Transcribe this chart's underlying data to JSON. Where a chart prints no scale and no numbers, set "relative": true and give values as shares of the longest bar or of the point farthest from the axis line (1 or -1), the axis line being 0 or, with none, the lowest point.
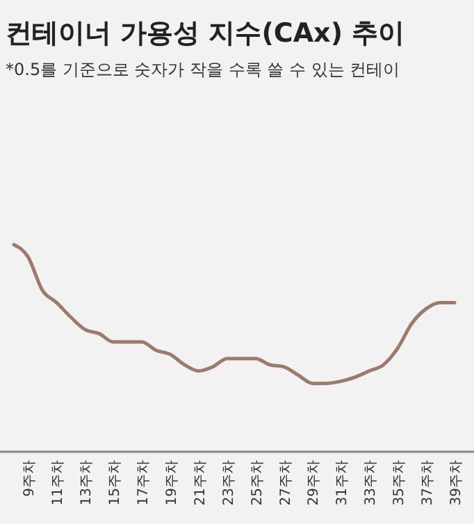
{
  "chart_data": {
    "type": "line",
    "title": "컨테이너 가용성 지수(CAx) 추이",
    "subtitle": "*0.5를 기준으로 숫자가 작을 수록 쓸 수 있는 컨테이",
    "relative": true,
    "marker": "none",
    "line_style": "solid",
    "categories": [
      null,
      "9주차",
      null,
      "11주차",
      null,
      "13주차",
      null,
      "15주차",
      null,
      "17주차",
      null,
      "19주차",
      null,
      "21주차",
      null,
      "23주차",
      null,
      "25주차",
      null,
      "27주차",
      null,
      "29주차",
      null,
      "31주차",
      null,
      "33주차",
      null,
      "35주차",
      null,
      "37주차",
      null,
      "39주차"
    ],
    "series": [
      {
        "color": "#9b7b6e",
        "values": [
          1,
          0.94,
          0.78,
          0.72,
          0.65,
          0.59,
          0.57,
          0.53,
          0.53,
          0.53,
          0.49,
          0.47,
          0.42,
          0.39,
          0.41,
          0.45,
          0.45,
          0.45,
          0.42,
          0.41,
          0.37,
          0.33,
          0.33,
          0.34,
          0.36,
          0.39,
          0.42,
          0.5,
          0.62,
          0.69,
          0.72,
          0.72
        ]
      }
    ]
  }
}
